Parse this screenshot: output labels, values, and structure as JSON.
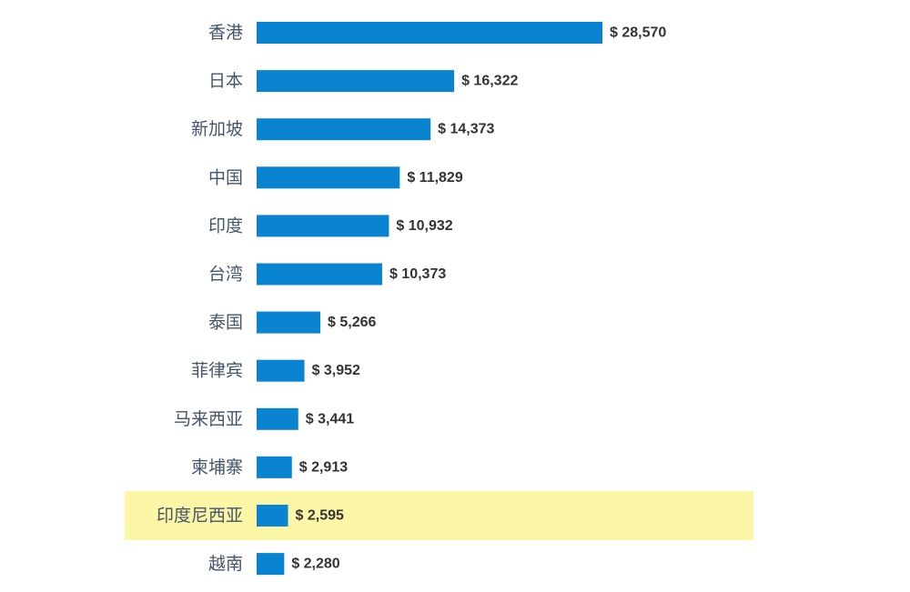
{
  "chart_data": {
    "type": "bar",
    "orientation": "horizontal",
    "title": "",
    "xlabel": "",
    "ylabel": "",
    "categories": [
      "香港",
      "日本",
      "新加坡",
      "中国",
      "印度",
      "台湾",
      "泰国",
      "菲律宾",
      "马来西亚",
      "柬埔寨",
      "印度尼西亚",
      "越南"
    ],
    "values": [
      28570,
      16322,
      14373,
      11829,
      10932,
      10373,
      5266,
      3952,
      3441,
      2913,
      2595,
      2280
    ],
    "value_labels": [
      "$ 28,570",
      "$ 16,322",
      "$ 14,373",
      "$ 11,829",
      "$ 10,932",
      "$ 10,373",
      "$ 5,266",
      "$ 3,952",
      "$ 3,441",
      "$ 2,913",
      "$ 2,595",
      "$ 2,280"
    ],
    "highlighted_category": "印度尼西亚",
    "grid": false,
    "legend": "none",
    "colors": {
      "bar": "#0a84d0",
      "highlight": "#fcf7a7",
      "category_text": "#44546a",
      "value_text": "#333333"
    }
  }
}
